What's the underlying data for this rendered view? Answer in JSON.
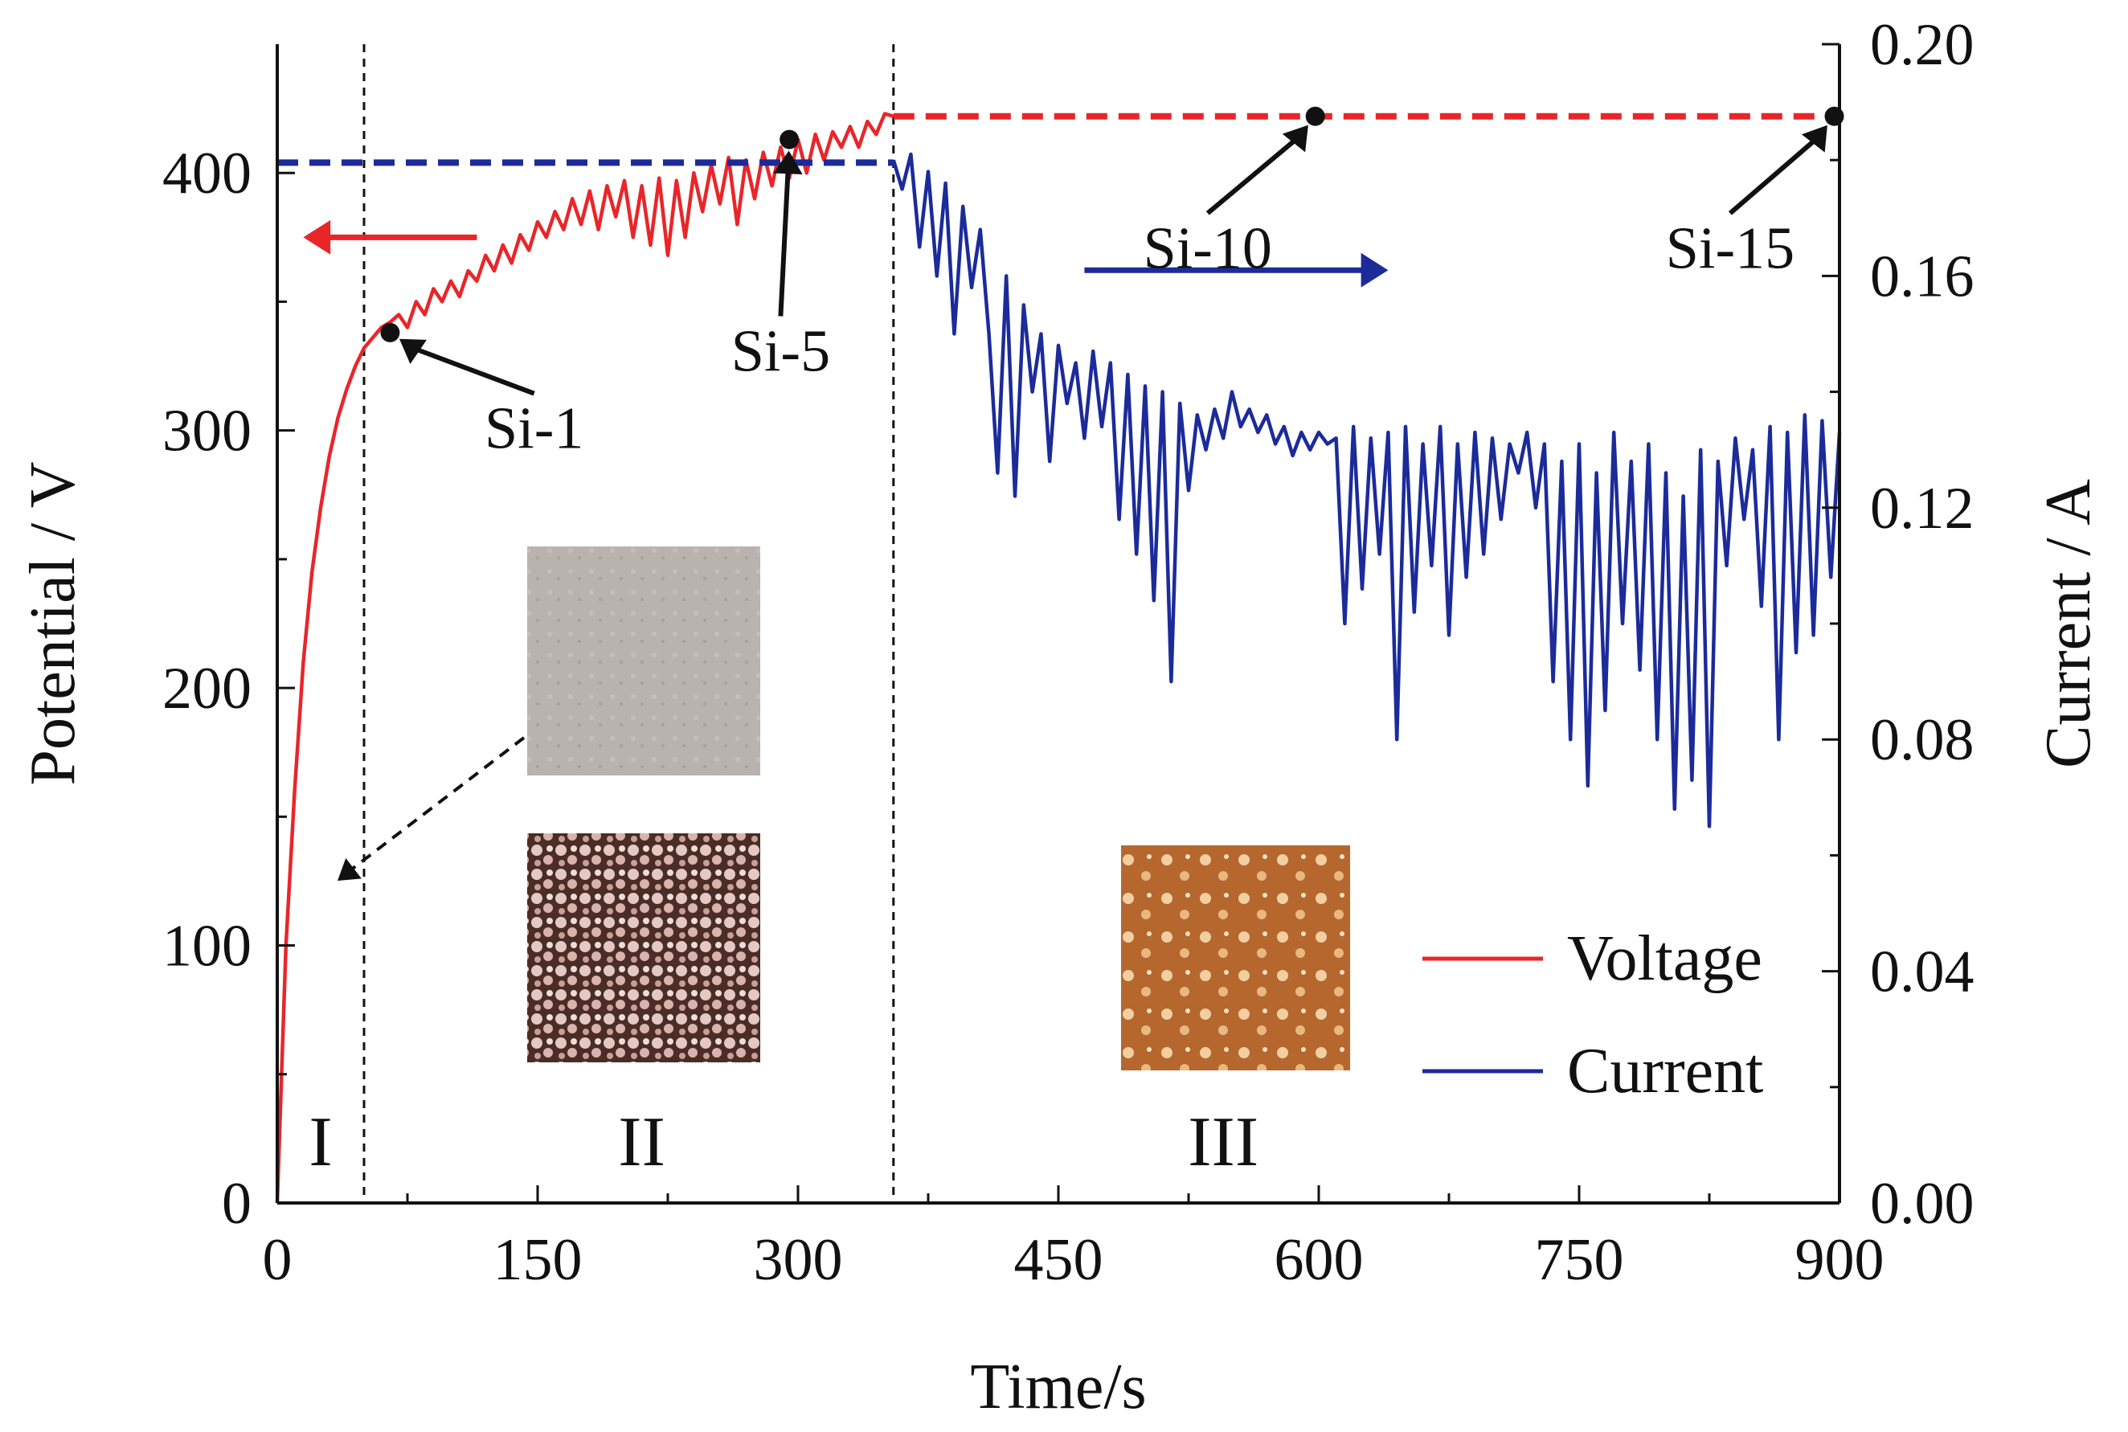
{
  "chart_data": {
    "type": "line",
    "title": "",
    "xlabel": "Time/s",
    "ylabel_left": "Potential / V",
    "ylabel_right": "Current / A",
    "xlim": [
      0,
      900
    ],
    "ylim_left": [
      0,
      450
    ],
    "ylim_right": [
      0,
      0.2
    ],
    "x_ticks": [
      "0",
      "150",
      "300",
      "450",
      "600",
      "750",
      "900"
    ],
    "y_left_ticks": [
      "0",
      "100",
      "200",
      "300",
      "400"
    ],
    "y_right_ticks": [
      "0.00",
      "0.04",
      "0.08",
      "0.12",
      "0.16",
      "0.20"
    ],
    "series": [
      {
        "name": "Voltage",
        "axis": "left",
        "color": "#e8262a",
        "points": [
          [
            0,
            0
          ],
          [
            2,
            40
          ],
          [
            5,
            100
          ],
          [
            10,
            160
          ],
          [
            15,
            210
          ],
          [
            20,
            245
          ],
          [
            25,
            270
          ],
          [
            30,
            290
          ],
          [
            35,
            305
          ],
          [
            40,
            316
          ],
          [
            45,
            325
          ],
          [
            50,
            332
          ],
          [
            55,
            336
          ],
          [
            60,
            340
          ],
          [
            65,
            342
          ],
          [
            70,
            345
          ],
          [
            75,
            340
          ],
          [
            80,
            350
          ],
          [
            85,
            345
          ],
          [
            90,
            355
          ],
          [
            95,
            350
          ],
          [
            100,
            358
          ],
          [
            105,
            352
          ],
          [
            110,
            362
          ],
          [
            115,
            358
          ],
          [
            120,
            368
          ],
          [
            125,
            362
          ],
          [
            130,
            372
          ],
          [
            135,
            365
          ],
          [
            140,
            376
          ],
          [
            145,
            370
          ],
          [
            150,
            381
          ],
          [
            155,
            375
          ],
          [
            160,
            385
          ],
          [
            165,
            378
          ],
          [
            170,
            390
          ],
          [
            175,
            380
          ],
          [
            180,
            393
          ],
          [
            185,
            378
          ],
          [
            190,
            395
          ],
          [
            195,
            383
          ],
          [
            200,
            397
          ],
          [
            205,
            375
          ],
          [
            210,
            395
          ],
          [
            215,
            372
          ],
          [
            220,
            398
          ],
          [
            225,
            368
          ],
          [
            230,
            397
          ],
          [
            235,
            375
          ],
          [
            240,
            400
          ],
          [
            245,
            385
          ],
          [
            250,
            403
          ],
          [
            255,
            388
          ],
          [
            260,
            406
          ],
          [
            265,
            380
          ],
          [
            270,
            405
          ],
          [
            275,
            390
          ],
          [
            280,
            408
          ],
          [
            285,
            395
          ],
          [
            290,
            410
          ],
          [
            295,
            398
          ],
          [
            300,
            413
          ],
          [
            305,
            400
          ],
          [
            310,
            415
          ],
          [
            315,
            405
          ],
          [
            320,
            416
          ],
          [
            325,
            410
          ],
          [
            330,
            418
          ],
          [
            335,
            410
          ],
          [
            340,
            420
          ],
          [
            345,
            415
          ],
          [
            350,
            423
          ],
          [
            355,
            422
          ]
        ]
      },
      {
        "name": "Current",
        "axis": "right",
        "color": "#1c2b9a",
        "points": [
          [
            355,
            0.18
          ],
          [
            360,
            0.175
          ],
          [
            365,
            0.181
          ],
          [
            370,
            0.165
          ],
          [
            375,
            0.178
          ],
          [
            380,
            0.16
          ],
          [
            385,
            0.176
          ],
          [
            390,
            0.15
          ],
          [
            395,
            0.172
          ],
          [
            400,
            0.158
          ],
          [
            405,
            0.168
          ],
          [
            410,
            0.15
          ],
          [
            415,
            0.126
          ],
          [
            420,
            0.16
          ],
          [
            425,
            0.122
          ],
          [
            430,
            0.155
          ],
          [
            435,
            0.14
          ],
          [
            440,
            0.15
          ],
          [
            445,
            0.128
          ],
          [
            450,
            0.148
          ],
          [
            455,
            0.138
          ],
          [
            460,
            0.145
          ],
          [
            465,
            0.132
          ],
          [
            470,
            0.147
          ],
          [
            475,
            0.134
          ],
          [
            480,
            0.145
          ],
          [
            485,
            0.118
          ],
          [
            490,
            0.143
          ],
          [
            495,
            0.112
          ],
          [
            500,
            0.141
          ],
          [
            505,
            0.104
          ],
          [
            510,
            0.14
          ],
          [
            515,
            0.09
          ],
          [
            520,
            0.138
          ],
          [
            525,
            0.123
          ],
          [
            530,
            0.136
          ],
          [
            535,
            0.13
          ],
          [
            540,
            0.137
          ],
          [
            545,
            0.132
          ],
          [
            550,
            0.14
          ],
          [
            555,
            0.134
          ],
          [
            560,
            0.137
          ],
          [
            565,
            0.133
          ],
          [
            570,
            0.136
          ],
          [
            575,
            0.131
          ],
          [
            580,
            0.134
          ],
          [
            585,
            0.129
          ],
          [
            590,
            0.133
          ],
          [
            595,
            0.13
          ],
          [
            600,
            0.133
          ],
          [
            605,
            0.131
          ],
          [
            610,
            0.132
          ],
          [
            615,
            0.1
          ],
          [
            620,
            0.134
          ],
          [
            625,
            0.106
          ],
          [
            630,
            0.132
          ],
          [
            635,
            0.112
          ],
          [
            640,
            0.133
          ],
          [
            645,
            0.08
          ],
          [
            650,
            0.134
          ],
          [
            655,
            0.102
          ],
          [
            660,
            0.131
          ],
          [
            665,
            0.11
          ],
          [
            670,
            0.134
          ],
          [
            675,
            0.098
          ],
          [
            680,
            0.131
          ],
          [
            685,
            0.108
          ],
          [
            690,
            0.133
          ],
          [
            695,
            0.112
          ],
          [
            700,
            0.132
          ],
          [
            705,
            0.118
          ],
          [
            710,
            0.131
          ],
          [
            715,
            0.126
          ],
          [
            720,
            0.133
          ],
          [
            725,
            0.12
          ],
          [
            730,
            0.131
          ],
          [
            735,
            0.09
          ],
          [
            740,
            0.128
          ],
          [
            745,
            0.08
          ],
          [
            750,
            0.131
          ],
          [
            755,
            0.072
          ],
          [
            760,
            0.126
          ],
          [
            765,
            0.085
          ],
          [
            770,
            0.133
          ],
          [
            775,
            0.1
          ],
          [
            780,
            0.128
          ],
          [
            785,
            0.092
          ],
          [
            790,
            0.131
          ],
          [
            795,
            0.08
          ],
          [
            800,
            0.126
          ],
          [
            805,
            0.068
          ],
          [
            810,
            0.122
          ],
          [
            815,
            0.073
          ],
          [
            820,
            0.13
          ],
          [
            825,
            0.065
          ],
          [
            830,
            0.128
          ],
          [
            835,
            0.11
          ],
          [
            840,
            0.132
          ],
          [
            845,
            0.118
          ],
          [
            850,
            0.13
          ],
          [
            855,
            0.103
          ],
          [
            860,
            0.134
          ],
          [
            865,
            0.08
          ],
          [
            870,
            0.133
          ],
          [
            875,
            0.095
          ],
          [
            880,
            0.136
          ],
          [
            885,
            0.098
          ],
          [
            890,
            0.135
          ],
          [
            895,
            0.108
          ],
          [
            900,
            0.133
          ]
        ]
      }
    ],
    "reference_lines": [
      {
        "axis": "left",
        "color": "#e8262a",
        "style": "dashed",
        "y": 422,
        "x_range": [
          355,
          900
        ]
      },
      {
        "axis": "left",
        "color": "#1c2b9a",
        "style": "dashed",
        "y": 404,
        "x_range": [
          0,
          355
        ]
      }
    ],
    "vertical_lines": [
      50,
      355
    ],
    "direction_arrows": [
      {
        "color": "#e8262a",
        "y": 375,
        "x_from": 115,
        "x_to": 15
      },
      {
        "color": "#1c2b9a",
        "y": 0.161,
        "axis": "right",
        "x_from": 465,
        "x_to": 640
      }
    ],
    "annotations": [
      {
        "text": "Si-1",
        "point": [
          65,
          338
        ],
        "label_at": [
          148,
          300
        ]
      },
      {
        "text": "Si-5",
        "point": [
          295,
          413
        ],
        "label_at": [
          290,
          330
        ]
      },
      {
        "text": "Si-10",
        "point": [
          598,
          422
        ],
        "label_at": [
          536,
          370
        ]
      },
      {
        "text": "Si-15",
        "point": [
          897,
          422
        ],
        "label_at": [
          837,
          370
        ]
      }
    ],
    "regions": [
      "I",
      "II",
      "III"
    ],
    "region_x": [
      25,
      210,
      545
    ],
    "legend": [
      {
        "label": "Voltage",
        "color": "#e8262a"
      },
      {
        "label": "Current",
        "color": "#1c2b9a"
      }
    ],
    "inset_images": [
      {
        "name": "sample-image-region-i",
        "colors": [
          "#b8b3ae",
          "#a6a19c"
        ]
      },
      {
        "name": "sample-image-region-ii",
        "colors": [
          "#4a2d26",
          "#e6c8c2"
        ]
      },
      {
        "name": "sample-image-region-iii",
        "colors": [
          "#b5672e",
          "#f2cfa0"
        ]
      }
    ]
  }
}
